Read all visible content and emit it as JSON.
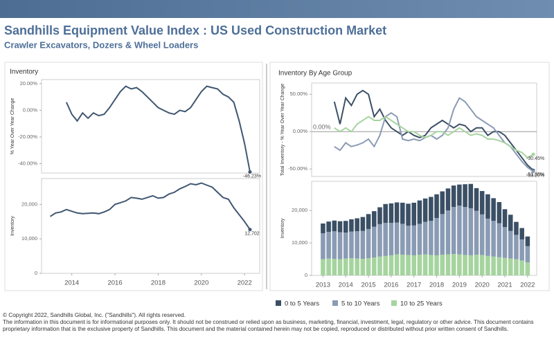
{
  "header": {
    "title": "Sandhills Equipment Value Index : US Used Construction Market",
    "subtitle": "Crawler Excavators, Dozers &  Wheel Loaders"
  },
  "panels": [
    {
      "title": "Inventory"
    },
    {
      "title": "Inventory By Age Group"
    }
  ],
  "chart_data": [
    {
      "type": "line",
      "y_label": "% Year Over Year Change",
      "color": "#3f5670",
      "x": [
        2013.75,
        2014,
        2014.25,
        2014.5,
        2014.75,
        2015,
        2015.25,
        2015.5,
        2015.75,
        2016,
        2016.25,
        2016.5,
        2016.75,
        2017,
        2017.25,
        2017.5,
        2017.75,
        2018,
        2018.25,
        2018.5,
        2018.75,
        2019,
        2019.25,
        2019.5,
        2019.75,
        2020,
        2020.25,
        2020.5,
        2020.75,
        2021,
        2021.25,
        2021.5,
        2021.75,
        2022,
        2022.25
      ],
      "values": [
        6,
        -3,
        -8,
        -2,
        -6,
        -2,
        -4,
        -3,
        2,
        8,
        14,
        18,
        16,
        17,
        14,
        10,
        6,
        2,
        0,
        -2,
        -3,
        0,
        -1,
        2,
        8,
        14,
        18,
        17,
        16,
        12,
        10,
        6,
        -8,
        -25,
        -46.23
      ],
      "value_labels": [
        null,
        null,
        null,
        null,
        null,
        null,
        null,
        null,
        null,
        null,
        null,
        null,
        null,
        null,
        null,
        null,
        null,
        null,
        null,
        null,
        null,
        null,
        null,
        null,
        null,
        null,
        null,
        null,
        null,
        null,
        null,
        null,
        null,
        null,
        "-46.23%"
      ],
      "xlim": [
        2012.6,
        2022.7
      ],
      "ylim": [
        -47,
        23
      ],
      "yticks": [
        {
          "value": -40,
          "label": "-40.00%"
        },
        {
          "value": -20,
          "label": "-20.00%"
        },
        {
          "value": 0,
          "label": "0.00%"
        },
        {
          "value": 20,
          "label": "20.00%"
        }
      ]
    },
    {
      "type": "line",
      "y_label": "Inventory",
      "color": "#3f5670",
      "x": [
        2013,
        2013.25,
        2013.5,
        2013.75,
        2014,
        2014.25,
        2014.5,
        2014.75,
        2015,
        2015.25,
        2015.5,
        2015.75,
        2016,
        2016.25,
        2016.5,
        2016.75,
        2017,
        2017.25,
        2017.5,
        2017.75,
        2018,
        2018.25,
        2018.5,
        2018.75,
        2019,
        2019.25,
        2019.5,
        2019.75,
        2020,
        2020.25,
        2020.5,
        2020.75,
        2021,
        2021.25,
        2021.5,
        2021.75,
        2022,
        2022.25
      ],
      "values": [
        16500,
        17500,
        17800,
        18500,
        18000,
        17500,
        17300,
        17400,
        17500,
        17300,
        17800,
        18500,
        20000,
        20500,
        21000,
        22000,
        21800,
        21500,
        22000,
        22500,
        21800,
        22000,
        23000,
        23500,
        24500,
        25200,
        26000,
        25700,
        26200,
        25600,
        25000,
        23500,
        22000,
        21500,
        19000,
        17000,
        15000,
        12702
      ],
      "value_labels": [
        null,
        null,
        null,
        null,
        null,
        null,
        null,
        null,
        null,
        null,
        null,
        null,
        null,
        null,
        null,
        null,
        null,
        null,
        null,
        null,
        null,
        null,
        null,
        null,
        null,
        null,
        null,
        null,
        null,
        null,
        null,
        null,
        null,
        null,
        null,
        null,
        null,
        "12,702"
      ],
      "xlim": [
        2012.6,
        2022.7
      ],
      "ylim": [
        0,
        27500
      ],
      "yticks": [
        0,
        {
          "value": 10000,
          "label": "10,000"
        },
        {
          "value": 20000,
          "label": "20,000"
        }
      ],
      "xticks": [
        2014,
        2016,
        2018,
        2020,
        2022
      ]
    },
    {
      "type": "line",
      "y_label": "Total Inventory - % Year Over Year Change",
      "annotation": "0.00%",
      "reference_line": 0,
      "x": [
        2013.5,
        2013.75,
        2014,
        2014.25,
        2014.5,
        2014.75,
        2015,
        2015.25,
        2015.5,
        2015.75,
        2016,
        2016.25,
        2016.5,
        2016.75,
        2017,
        2017.25,
        2017.5,
        2017.75,
        2018,
        2018.25,
        2018.5,
        2018.75,
        2019,
        2019.25,
        2019.5,
        2019.75,
        2020,
        2020.25,
        2020.5,
        2020.75,
        2021,
        2021.25,
        2021.5,
        2021.75,
        2022,
        2022.25
      ],
      "series": [
        {
          "color": "#3b4f65",
          "values": [
            40,
            10,
            45,
            35,
            50,
            55,
            50,
            20,
            30,
            15,
            5,
            0,
            -5,
            0,
            -5,
            -8,
            -5,
            5,
            10,
            15,
            10,
            5,
            10,
            8,
            0,
            5,
            5,
            -5,
            0,
            0,
            -5,
            -15,
            -25,
            -35,
            -45,
            -51.88
          ],
          "value_labels": [
            null,
            null,
            null,
            null,
            null,
            null,
            null,
            null,
            null,
            null,
            null,
            null,
            null,
            null,
            null,
            null,
            null,
            null,
            null,
            null,
            null,
            null,
            null,
            null,
            null,
            null,
            null,
            null,
            null,
            null,
            null,
            null,
            null,
            null,
            null,
            "-51.88%"
          ]
        },
        {
          "color": "#8a9bb4",
          "values": [
            -20,
            -25,
            -15,
            -20,
            -18,
            -15,
            -10,
            -20,
            -5,
            20,
            25,
            20,
            -10,
            -12,
            -10,
            -12,
            -8,
            -5,
            -10,
            -5,
            5,
            30,
            45,
            40,
            30,
            20,
            15,
            10,
            5,
            -5,
            -15,
            -20,
            -30,
            -40,
            -48,
            -53.2
          ],
          "value_labels": [
            null,
            null,
            null,
            null,
            null,
            null,
            null,
            null,
            null,
            null,
            null,
            null,
            null,
            null,
            null,
            null,
            null,
            null,
            null,
            null,
            null,
            null,
            null,
            null,
            null,
            null,
            null,
            null,
            null,
            null,
            null,
            null,
            null,
            null,
            null,
            "-53.20%"
          ]
        },
        {
          "color": "#a6d49f",
          "values": [
            5,
            0,
            5,
            0,
            10,
            15,
            20,
            15,
            15,
            20,
            15,
            10,
            5,
            0,
            0,
            -5,
            -8,
            -5,
            0,
            0,
            -5,
            0,
            5,
            0,
            -5,
            -3,
            -5,
            -10,
            -10,
            -12,
            -15,
            -20,
            -25,
            -28,
            -35,
            -30.45
          ],
          "value_labels": [
            null,
            null,
            null,
            null,
            null,
            null,
            null,
            null,
            null,
            null,
            null,
            null,
            null,
            null,
            null,
            null,
            null,
            null,
            null,
            null,
            null,
            null,
            null,
            null,
            null,
            null,
            null,
            null,
            null,
            null,
            null,
            null,
            null,
            null,
            null,
            "-30.45%"
          ]
        }
      ],
      "xlim": [
        2012.5,
        2022.4
      ],
      "ylim": [
        -60,
        65
      ],
      "yticks": [
        {
          "value": -50,
          "label": "-50.00%"
        },
        {
          "value": 0,
          "label": "0.00%"
        },
        {
          "value": 50,
          "label": "50.00%"
        }
      ]
    },
    {
      "type": "bar",
      "stacked": true,
      "y_label": "Inventory",
      "x": [
        2013,
        2013.25,
        2013.5,
        2013.75,
        2014,
        2014.25,
        2014.5,
        2014.75,
        2015,
        2015.25,
        2015.5,
        2015.75,
        2016,
        2016.25,
        2016.5,
        2016.75,
        2017,
        2017.25,
        2017.5,
        2017.75,
        2018,
        2018.25,
        2018.5,
        2018.75,
        2019,
        2019.25,
        2019.5,
        2019.75,
        2020,
        2020.25,
        2020.5,
        2020.75,
        2021,
        2021.25,
        2021.5,
        2021.75,
        2022
      ],
      "series": [
        {
          "name": "10 to 25 Years",
          "color": "#a6d49f",
          "values": [
            5000,
            5200,
            5100,
            5000,
            5200,
            5300,
            5200,
            5100,
            5300,
            5500,
            5800,
            6000,
            6200,
            6500,
            6400,
            6300,
            6200,
            6400,
            6500,
            6300,
            6200,
            6400,
            6500,
            6600,
            6500,
            6300,
            6200,
            6400,
            6300,
            6000,
            5800,
            5600,
            5400,
            5200,
            5000,
            4600,
            4000
          ]
        },
        {
          "name": "5 to 10 Years",
          "color": "#8a9bb4",
          "values": [
            8000,
            8200,
            8500,
            8300,
            8000,
            8200,
            8400,
            8600,
            9000,
            9500,
            10000,
            10200,
            10000,
            9800,
            9500,
            9000,
            9200,
            9500,
            10000,
            10500,
            11500,
            12500,
            13500,
            14500,
            15000,
            14800,
            14500,
            13500,
            12500,
            11500,
            11000,
            10500,
            9500,
            8500,
            7500,
            6500,
            5000
          ]
        },
        {
          "name": "0 to 5 Years",
          "color": "#3b4f65",
          "values": [
            3000,
            3200,
            3300,
            3400,
            3600,
            3800,
            4000,
            4300,
            4600,
            4800,
            5200,
            5800,
            6000,
            6200,
            6500,
            6800,
            7000,
            7200,
            7200,
            7400,
            7300,
            7000,
            6800,
            6600,
            6500,
            7000,
            7500,
            7000,
            7200,
            7500,
            7000,
            6500,
            5500,
            5000,
            4000,
            3500,
            3000
          ]
        }
      ],
      "xlim": [
        2012.5,
        2022.4
      ],
      "ylim": [
        0,
        29000
      ],
      "yticks": [
        0,
        {
          "value": 10000,
          "label": "10,000"
        },
        {
          "value": 20000,
          "label": "20,000"
        }
      ],
      "xticks": [
        2013,
        2014,
        2015,
        2016,
        2017,
        2018,
        2019,
        2020,
        2021,
        2022
      ]
    }
  ],
  "footer": {
    "copyright": "© Copyright 2022, Sandhills Global, Inc. (\"Sandhills\"). All rights reserved.",
    "notice": "The information in this document is for informational purposes only.  It should not be construed or relied upon as business, marketing, financial, investment, legal, regulatory or other advice. This document contains proprietary information that is the exclusive property of Sandhills. This document and the material contained herein may not be copied, reproduced or distributed without prior written consent of Sandhills."
  }
}
